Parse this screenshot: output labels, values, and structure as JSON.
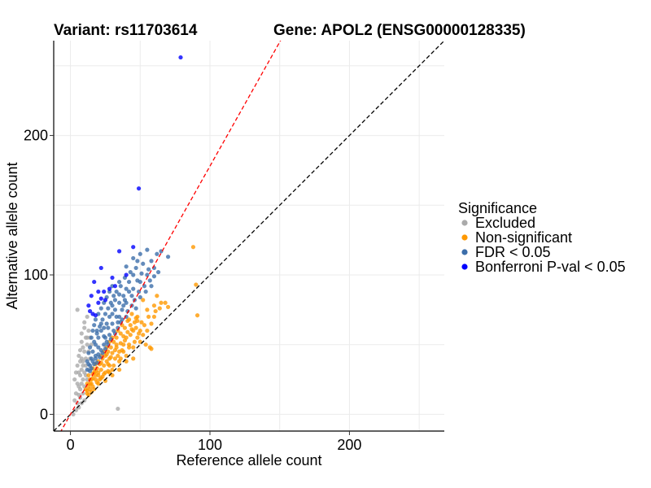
{
  "chart_data": {
    "type": "scatter",
    "title_left": "Variant: rs11703614",
    "title_right": "Gene: APOL2 (ENSG00000128335)",
    "xlabel": "Reference allele count",
    "ylabel": "Alternative allele count",
    "xlim": [
      -12,
      268
    ],
    "ylim": [
      -12,
      268
    ],
    "x_ticks": [
      0,
      100,
      200
    ],
    "y_ticks": [
      0,
      100,
      200
    ],
    "grid": true,
    "reference_lines": [
      {
        "name": "identity",
        "slope": 1,
        "intercept": 0,
        "color": "#000000",
        "style": "dashed"
      },
      {
        "name": "fitted-ratio",
        "slope": 1.78,
        "intercept": 0,
        "color": "#ff0000",
        "style": "dashed"
      }
    ],
    "legend": {
      "title": "Significance",
      "position": "right",
      "entries": [
        {
          "label": "Excluded",
          "color": "#aaaaaa"
        },
        {
          "label": "Non-significant",
          "color": "#ff9900"
        },
        {
          "label": "FDR < 0.05",
          "color": "#3c6eaa"
        },
        {
          "label": "Bonferroni P-val < 0.05",
          "color": "#0000ff"
        }
      ]
    },
    "series": [
      {
        "name": "Excluded",
        "color": "#aaaaaa",
        "points": [
          [
            5,
            75
          ],
          [
            3,
            10
          ],
          [
            4,
            15
          ],
          [
            5,
            22
          ],
          [
            6,
            20
          ],
          [
            7,
            28
          ],
          [
            8,
            32
          ],
          [
            8,
            40
          ],
          [
            9,
            35
          ],
          [
            10,
            45
          ],
          [
            9,
            25
          ],
          [
            6,
            30
          ],
          [
            7,
            18
          ],
          [
            10,
            30
          ],
          [
            11,
            40
          ],
          [
            12,
            50
          ],
          [
            12,
            55
          ],
          [
            8,
            52
          ],
          [
            9,
            48
          ],
          [
            13,
            60
          ],
          [
            10,
            62
          ],
          [
            11,
            55
          ],
          [
            7,
            12
          ],
          [
            5,
            8
          ],
          [
            6,
            5
          ],
          [
            9,
            15
          ],
          [
            4,
            3
          ],
          [
            10,
            20
          ],
          [
            12,
            25
          ],
          [
            11,
            35
          ],
          [
            13,
            45
          ],
          [
            14,
            40
          ],
          [
            8,
            22
          ],
          [
            6,
            14
          ],
          [
            3,
            25
          ],
          [
            4,
            30
          ],
          [
            5,
            35
          ],
          [
            6,
            42
          ],
          [
            7,
            46
          ],
          [
            8,
            58
          ],
          [
            10,
            66
          ],
          [
            12,
            70
          ],
          [
            34,
            4
          ],
          [
            2,
            0
          ],
          [
            15,
            50
          ],
          [
            14,
            55
          ],
          [
            9,
            38
          ],
          [
            11,
            28
          ],
          [
            10,
            10
          ],
          [
            8,
            8
          ],
          [
            13,
            32
          ],
          [
            7,
            38
          ]
        ]
      },
      {
        "name": "Non-significant",
        "color": "#ff9900",
        "points": [
          [
            12,
            15
          ],
          [
            14,
            18
          ],
          [
            15,
            22
          ],
          [
            16,
            20
          ],
          [
            18,
            25
          ],
          [
            20,
            28
          ],
          [
            22,
            26
          ],
          [
            25,
            30
          ],
          [
            28,
            35
          ],
          [
            30,
            32
          ],
          [
            32,
            40
          ],
          [
            35,
            38
          ],
          [
            38,
            45
          ],
          [
            40,
            42
          ],
          [
            42,
            50
          ],
          [
            45,
            48
          ],
          [
            48,
            55
          ],
          [
            50,
            52
          ],
          [
            55,
            60
          ],
          [
            52,
            57
          ],
          [
            88,
            120
          ],
          [
            90,
            93
          ],
          [
            91,
            71
          ],
          [
            70,
            77
          ],
          [
            60,
            70
          ],
          [
            65,
            80
          ],
          [
            62,
            85
          ],
          [
            58,
            65
          ],
          [
            55,
            75
          ],
          [
            60,
            78
          ],
          [
            52,
            82
          ],
          [
            48,
            70
          ],
          [
            45,
            60
          ],
          [
            40,
            55
          ],
          [
            38,
            50
          ],
          [
            35,
            45
          ],
          [
            33,
            48
          ],
          [
            30,
            44
          ],
          [
            28,
            40
          ],
          [
            26,
            38
          ],
          [
            24,
            35
          ],
          [
            22,
            32
          ],
          [
            20,
            30
          ],
          [
            18,
            28
          ],
          [
            16,
            26
          ],
          [
            14,
            22
          ],
          [
            13,
            20
          ],
          [
            15,
            25
          ],
          [
            17,
            30
          ],
          [
            19,
            33
          ],
          [
            21,
            36
          ],
          [
            23,
            40
          ],
          [
            25,
            42
          ],
          [
            27,
            45
          ],
          [
            29,
            48
          ],
          [
            31,
            52
          ],
          [
            33,
            55
          ],
          [
            36,
            58
          ],
          [
            39,
            62
          ],
          [
            42,
            68
          ],
          [
            44,
            72
          ],
          [
            46,
            66
          ],
          [
            50,
            60
          ],
          [
            54,
            50
          ],
          [
            57,
            48
          ],
          [
            58,
            47
          ],
          [
            64,
            76
          ],
          [
            68,
            80
          ],
          [
            12,
            22
          ],
          [
            11,
            18
          ],
          [
            13,
            28
          ],
          [
            16,
            33
          ],
          [
            18,
            36
          ],
          [
            20,
            38
          ],
          [
            22,
            42
          ],
          [
            24,
            45
          ],
          [
            26,
            48
          ],
          [
            28,
            52
          ],
          [
            30,
            55
          ],
          [
            34,
            60
          ],
          [
            37,
            64
          ],
          [
            41,
            67
          ],
          [
            43,
            64
          ],
          [
            47,
            62
          ],
          [
            49,
            58
          ],
          [
            53,
            64
          ],
          [
            56,
            70
          ],
          [
            61,
            74
          ],
          [
            45,
            40
          ],
          [
            40,
            38
          ],
          [
            35,
            32
          ],
          [
            30,
            28
          ],
          [
            25,
            24
          ],
          [
            20,
            22
          ],
          [
            17,
            18
          ],
          [
            15,
            16
          ],
          [
            19,
            23
          ],
          [
            23,
            27
          ],
          [
            27,
            31
          ],
          [
            31,
            35
          ],
          [
            34,
            42
          ],
          [
            37,
            46
          ],
          [
            39,
            53
          ],
          [
            43,
            57
          ],
          [
            46,
            52
          ],
          [
            51,
            66
          ],
          [
            32,
            46
          ],
          [
            36,
            51
          ],
          [
            24,
            29
          ],
          [
            21,
            25
          ],
          [
            27,
            36
          ],
          [
            29,
            41
          ],
          [
            33,
            50
          ],
          [
            38,
            56
          ],
          [
            41,
            59
          ],
          [
            44,
            61
          ],
          [
            47,
            69
          ],
          [
            26,
            43
          ],
          [
            22,
            37
          ],
          [
            18,
            31
          ],
          [
            14,
            25
          ],
          [
            16,
            29
          ],
          [
            12,
            17
          ],
          [
            13,
            14
          ],
          [
            48,
            67
          ],
          [
            42,
            48
          ],
          [
            36,
            40
          ],
          [
            28,
            30
          ]
        ]
      },
      {
        "name": "FDR < 0.05",
        "color": "#3c6eaa",
        "points": [
          [
            15,
            40
          ],
          [
            16,
            45
          ],
          [
            18,
            50
          ],
          [
            20,
            55
          ],
          [
            22,
            60
          ],
          [
            24,
            62
          ],
          [
            26,
            65
          ],
          [
            28,
            70
          ],
          [
            30,
            72
          ],
          [
            32,
            75
          ],
          [
            35,
            80
          ],
          [
            38,
            85
          ],
          [
            40,
            90
          ],
          [
            42,
            95
          ],
          [
            45,
            100
          ],
          [
            48,
            110
          ],
          [
            50,
            115
          ],
          [
            55,
            118
          ],
          [
            65,
            117
          ],
          [
            70,
            113
          ],
          [
            60,
            105
          ],
          [
            55,
            100
          ],
          [
            50,
            95
          ],
          [
            45,
            90
          ],
          [
            40,
            80
          ],
          [
            35,
            70
          ],
          [
            30,
            65
          ],
          [
            25,
            55
          ],
          [
            20,
            48
          ],
          [
            18,
            42
          ],
          [
            16,
            38
          ],
          [
            14,
            35
          ],
          [
            17,
            52
          ],
          [
            19,
            58
          ],
          [
            21,
            63
          ],
          [
            23,
            68
          ],
          [
            25,
            72
          ],
          [
            27,
            76
          ],
          [
            29,
            80
          ],
          [
            31,
            85
          ],
          [
            33,
            88
          ],
          [
            36,
            92
          ],
          [
            39,
            98
          ],
          [
            43,
            102
          ],
          [
            47,
            105
          ],
          [
            52,
            108
          ],
          [
            58,
            110
          ],
          [
            62,
            115
          ],
          [
            44,
            85
          ],
          [
            38,
            78
          ],
          [
            34,
            66
          ],
          [
            31,
            60
          ],
          [
            28,
            57
          ],
          [
            26,
            52
          ],
          [
            24,
            50
          ],
          [
            22,
            46
          ],
          [
            20,
            43
          ],
          [
            18,
            40
          ],
          [
            17,
            36
          ],
          [
            15,
            33
          ],
          [
            14,
            31
          ],
          [
            19,
            37
          ],
          [
            21,
            41
          ],
          [
            23,
            44
          ],
          [
            25,
            47
          ],
          [
            27,
            50
          ],
          [
            29,
            54
          ],
          [
            32,
            58
          ],
          [
            34,
            62
          ],
          [
            36,
            66
          ],
          [
            41,
            74
          ],
          [
            46,
            82
          ],
          [
            49,
            88
          ],
          [
            53,
            92
          ],
          [
            57,
            96
          ],
          [
            60,
            99
          ],
          [
            63,
            102
          ],
          [
            12,
            38
          ],
          [
            13,
            44
          ],
          [
            14,
            48
          ],
          [
            15,
            55
          ],
          [
            16,
            60
          ],
          [
            17,
            64
          ],
          [
            18,
            68
          ],
          [
            20,
            72
          ],
          [
            22,
            76
          ],
          [
            24,
            80
          ],
          [
            26,
            84
          ],
          [
            28,
            88
          ],
          [
            30,
            92
          ],
          [
            12,
            32
          ],
          [
            13,
            36
          ],
          [
            37,
            75
          ],
          [
            39,
            82
          ],
          [
            42,
            88
          ],
          [
            48,
            96
          ],
          [
            51,
            101
          ],
          [
            56,
            104
          ],
          [
            30,
            78
          ],
          [
            32,
            82
          ],
          [
            35,
            86
          ],
          [
            22,
            65
          ],
          [
            19,
            60
          ],
          [
            24,
            56
          ],
          [
            27,
            62
          ],
          [
            33,
            70
          ],
          [
            37,
            68
          ],
          [
            40,
            70
          ],
          [
            44,
            78
          ],
          [
            47,
            76
          ],
          [
            50,
            84
          ],
          [
            54,
            88
          ],
          [
            58,
            92
          ],
          [
            35,
            95
          ],
          [
            40,
            106
          ],
          [
            45,
            112
          ]
        ]
      },
      {
        "name": "Bonferroni P-val < 0.05",
        "color": "#0000ff",
        "points": [
          [
            79,
            256
          ],
          [
            49,
            162
          ],
          [
            45,
            120
          ],
          [
            35,
            117
          ],
          [
            40,
            100
          ],
          [
            22,
            105
          ],
          [
            30,
            98
          ],
          [
            20,
            88
          ],
          [
            15,
            85
          ],
          [
            13,
            78
          ],
          [
            16,
            72
          ],
          [
            18,
            71
          ],
          [
            14,
            74
          ],
          [
            20,
            80
          ],
          [
            25,
            82
          ],
          [
            28,
            90
          ],
          [
            32,
            92
          ],
          [
            17,
            95
          ],
          [
            24,
            88
          ],
          [
            22,
            83
          ]
        ]
      }
    ]
  }
}
